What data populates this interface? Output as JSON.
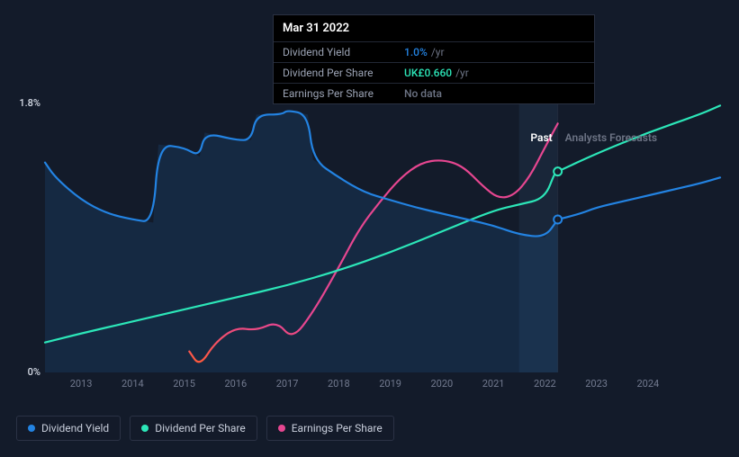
{
  "chart": {
    "type": "line",
    "background_color": "#131b2a",
    "area_fill_color": "rgba(35,105,180,0.18)",
    "grid_color": "none",
    "ylim": [
      0,
      1.8
    ],
    "ytick_labels": [
      "0%",
      "1.8%"
    ],
    "ytick_positions": [
      0,
      1.8
    ],
    "xlim": [
      2012.3,
      2025.4
    ],
    "xtick_labels": [
      "2013",
      "2014",
      "2015",
      "2016",
      "2017",
      "2018",
      "2019",
      "2020",
      "2021",
      "2022",
      "2023",
      "2024"
    ],
    "xtick_positions": [
      2013,
      2014,
      2015,
      2016,
      2017,
      2018,
      2019,
      2020,
      2021,
      2022,
      2023,
      2024
    ],
    "split_year": 2022.25,
    "past_label": "Past",
    "forecast_label": "Analysts Forecasts",
    "past_label_color": "#ffffff",
    "forecast_label_color": "#6d7485",
    "highlight_band": {
      "from": 2021.5,
      "to": 2022.25,
      "color": "rgba(80,140,200,0.10)"
    },
    "line_width": 2.2,
    "marker_radius": 4.5,
    "marker_stroke_width": 2,
    "label_fontsize": 11,
    "series": {
      "dividend_yield": {
        "label": "Dividend Yield",
        "color": "#2383e2",
        "past": [
          [
            2012.3,
            1.4
          ],
          [
            2012.5,
            1.3
          ],
          [
            2013.0,
            1.15
          ],
          [
            2013.5,
            1.06
          ],
          [
            2014.0,
            1.02
          ],
          [
            2014.4,
            1.0
          ],
          [
            2014.5,
            1.52
          ],
          [
            2015.0,
            1.5
          ],
          [
            2015.3,
            1.44
          ],
          [
            2015.4,
            1.6
          ],
          [
            2016.0,
            1.55
          ],
          [
            2016.3,
            1.55
          ],
          [
            2016.4,
            1.72
          ],
          [
            2016.9,
            1.72
          ],
          [
            2017.0,
            1.75
          ],
          [
            2017.4,
            1.72
          ],
          [
            2017.5,
            1.42
          ],
          [
            2018.0,
            1.3
          ],
          [
            2018.5,
            1.2
          ],
          [
            2019.0,
            1.15
          ],
          [
            2019.5,
            1.1
          ],
          [
            2020.0,
            1.06
          ],
          [
            2020.5,
            1.02
          ],
          [
            2021.0,
            0.98
          ],
          [
            2021.5,
            0.92
          ],
          [
            2022.0,
            0.9
          ],
          [
            2022.25,
            1.02
          ]
        ],
        "forecast": [
          [
            2022.25,
            1.02
          ],
          [
            2022.7,
            1.06
          ],
          [
            2023.0,
            1.1
          ],
          [
            2023.5,
            1.14
          ],
          [
            2024.0,
            1.18
          ],
          [
            2024.5,
            1.22
          ],
          [
            2025.0,
            1.26
          ],
          [
            2025.4,
            1.3
          ]
        ],
        "marker_at": [
          2022.25,
          1.02
        ]
      },
      "dividend_per_share": {
        "label": "Dividend Per Share",
        "color": "#2ce6b8",
        "past": [
          [
            2012.3,
            0.2
          ],
          [
            2013.0,
            0.26
          ],
          [
            2014.0,
            0.34
          ],
          [
            2015.0,
            0.42
          ],
          [
            2016.0,
            0.5
          ],
          [
            2017.0,
            0.58
          ],
          [
            2018.0,
            0.68
          ],
          [
            2019.0,
            0.8
          ],
          [
            2020.0,
            0.94
          ],
          [
            2021.0,
            1.08
          ],
          [
            2021.5,
            1.12
          ],
          [
            2022.0,
            1.16
          ],
          [
            2022.2,
            1.34
          ],
          [
            2022.25,
            1.34
          ]
        ],
        "forecast": [
          [
            2022.25,
            1.34
          ],
          [
            2023.0,
            1.46
          ],
          [
            2024.0,
            1.6
          ],
          [
            2025.0,
            1.72
          ],
          [
            2025.4,
            1.78
          ]
        ],
        "marker_at": [
          2022.25,
          1.34
        ]
      },
      "earnings_per_share": {
        "label": "Earnings Per Share",
        "color": "#e64690",
        "gradient_start": "#ff5a3c",
        "past": [
          [
            2015.1,
            0.14
          ],
          [
            2015.3,
            0.04
          ],
          [
            2015.6,
            0.2
          ],
          [
            2016.0,
            0.3
          ],
          [
            2016.4,
            0.28
          ],
          [
            2016.8,
            0.34
          ],
          [
            2017.1,
            0.22
          ],
          [
            2017.5,
            0.4
          ],
          [
            2018.0,
            0.7
          ],
          [
            2018.4,
            0.96
          ],
          [
            2018.8,
            1.14
          ],
          [
            2019.2,
            1.3
          ],
          [
            2019.6,
            1.4
          ],
          [
            2020.0,
            1.42
          ],
          [
            2020.4,
            1.38
          ],
          [
            2020.8,
            1.24
          ],
          [
            2021.1,
            1.16
          ],
          [
            2021.4,
            1.18
          ],
          [
            2021.7,
            1.3
          ],
          [
            2022.0,
            1.5
          ],
          [
            2022.25,
            1.66
          ]
        ],
        "forecast": []
      }
    }
  },
  "tooltip": {
    "date": "Mar 31 2022",
    "rows": [
      {
        "label": "Dividend Yield",
        "value": "1.0%",
        "suffix": "/yr",
        "value_color": "#2383e2"
      },
      {
        "label": "Dividend Per Share",
        "value": "UK£0.660",
        "suffix": "/yr",
        "value_color": "#2ce6b8"
      },
      {
        "label": "Earnings Per Share",
        "value": "No data",
        "suffix": "",
        "value_color": "#6d7485"
      }
    ]
  },
  "legend": [
    {
      "label": "Dividend Yield",
      "color": "#2383e2"
    },
    {
      "label": "Dividend Per Share",
      "color": "#2ce6b8"
    },
    {
      "label": "Earnings Per Share",
      "color": "#e64690"
    }
  ]
}
